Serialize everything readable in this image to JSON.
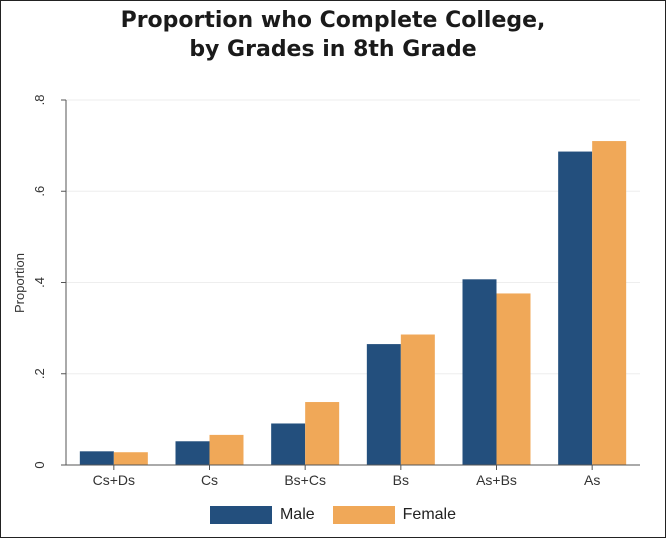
{
  "chart_data": {
    "type": "bar",
    "title_lines": [
      "Proportion who Complete College,",
      "by Grades in 8th Grade"
    ],
    "xlabel": "",
    "ylabel": "Proportion",
    "ylim": [
      0,
      0.8
    ],
    "yticks": [
      0,
      0.2,
      0.4,
      0.6,
      0.8
    ],
    "ytick_labels": [
      "0",
      ".2",
      ".4",
      ".6",
      ".8"
    ],
    "categories": [
      "Cs+Ds",
      "Cs",
      "Bs+Cs",
      "Bs",
      "As+Bs",
      "As"
    ],
    "series": [
      {
        "name": "Male",
        "color": "#234f7d",
        "values": [
          0.03,
          0.052,
          0.091,
          0.265,
          0.407,
          0.687
        ]
      },
      {
        "name": "Female",
        "color": "#f0a858",
        "values": [
          0.028,
          0.066,
          0.138,
          0.286,
          0.376,
          0.71
        ]
      }
    ],
    "grid": true,
    "legend_position": "bottom"
  }
}
